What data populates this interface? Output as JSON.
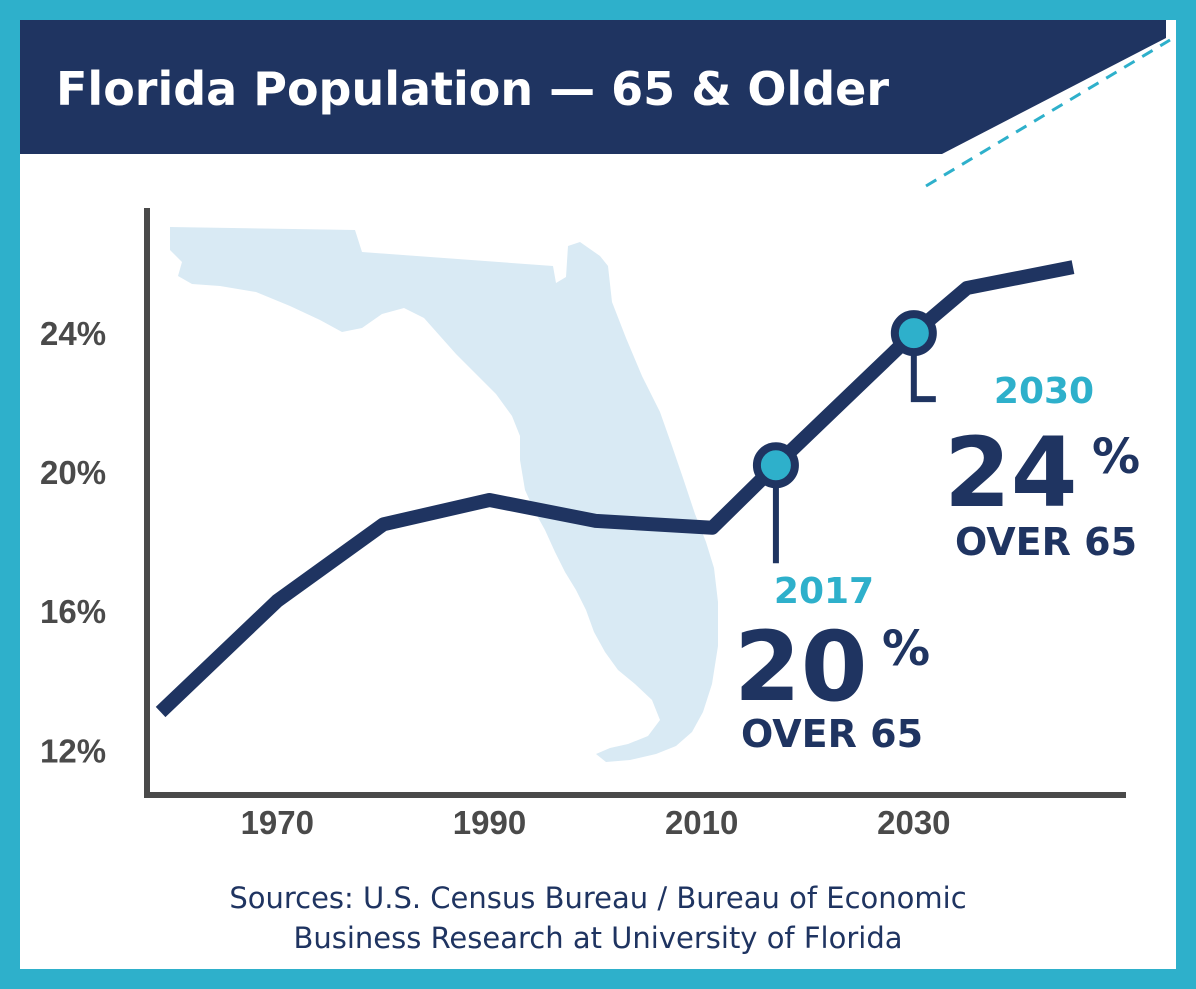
{
  "colors": {
    "border": "#2eb0cb",
    "navy": "#1f3461",
    "accent": "#2eb0cb",
    "map": "#d9eaf4",
    "axis": "#4a4a4a",
    "background": "#ffffff"
  },
  "chart_data": {
    "type": "line",
    "title": "Florida Population — 65 & Older",
    "xlabel": "",
    "ylabel": "",
    "x_ticks": [
      1970,
      1990,
      2010,
      2030
    ],
    "y_ticks": [
      12,
      16,
      20,
      24
    ],
    "y_tick_labels": [
      "12%",
      "16%",
      "20%",
      "24%"
    ],
    "x_tick_labels": [
      "1970",
      "1990",
      "2010",
      "2030"
    ],
    "xlim": [
      1958,
      2050
    ],
    "ylim": [
      10.8,
      27.6
    ],
    "grid": false,
    "background_image": "florida-map",
    "series": [
      {
        "x": [
          1959,
          1970,
          1980,
          1990,
          2000,
          2011,
          2017,
          2030,
          2035,
          2045
        ],
        "y": [
          13.1,
          16.3,
          18.5,
          19.2,
          18.6,
          18.4,
          20.2,
          24.0,
          25.3,
          25.9
        ]
      }
    ],
    "highlights": [
      {
        "x": 2017,
        "y": 20.2,
        "year": "2017",
        "value": "20",
        "pct": "%",
        "caption": "OVER 65"
      },
      {
        "x": 2030,
        "y": 24.0,
        "year": "2030",
        "value": "24",
        "pct": "%",
        "caption": "OVER 65"
      }
    ],
    "source_lines": [
      "Sources: U.S. Census Bureau / Bureau of Economic",
      "Business Research at University of Florida"
    ]
  }
}
